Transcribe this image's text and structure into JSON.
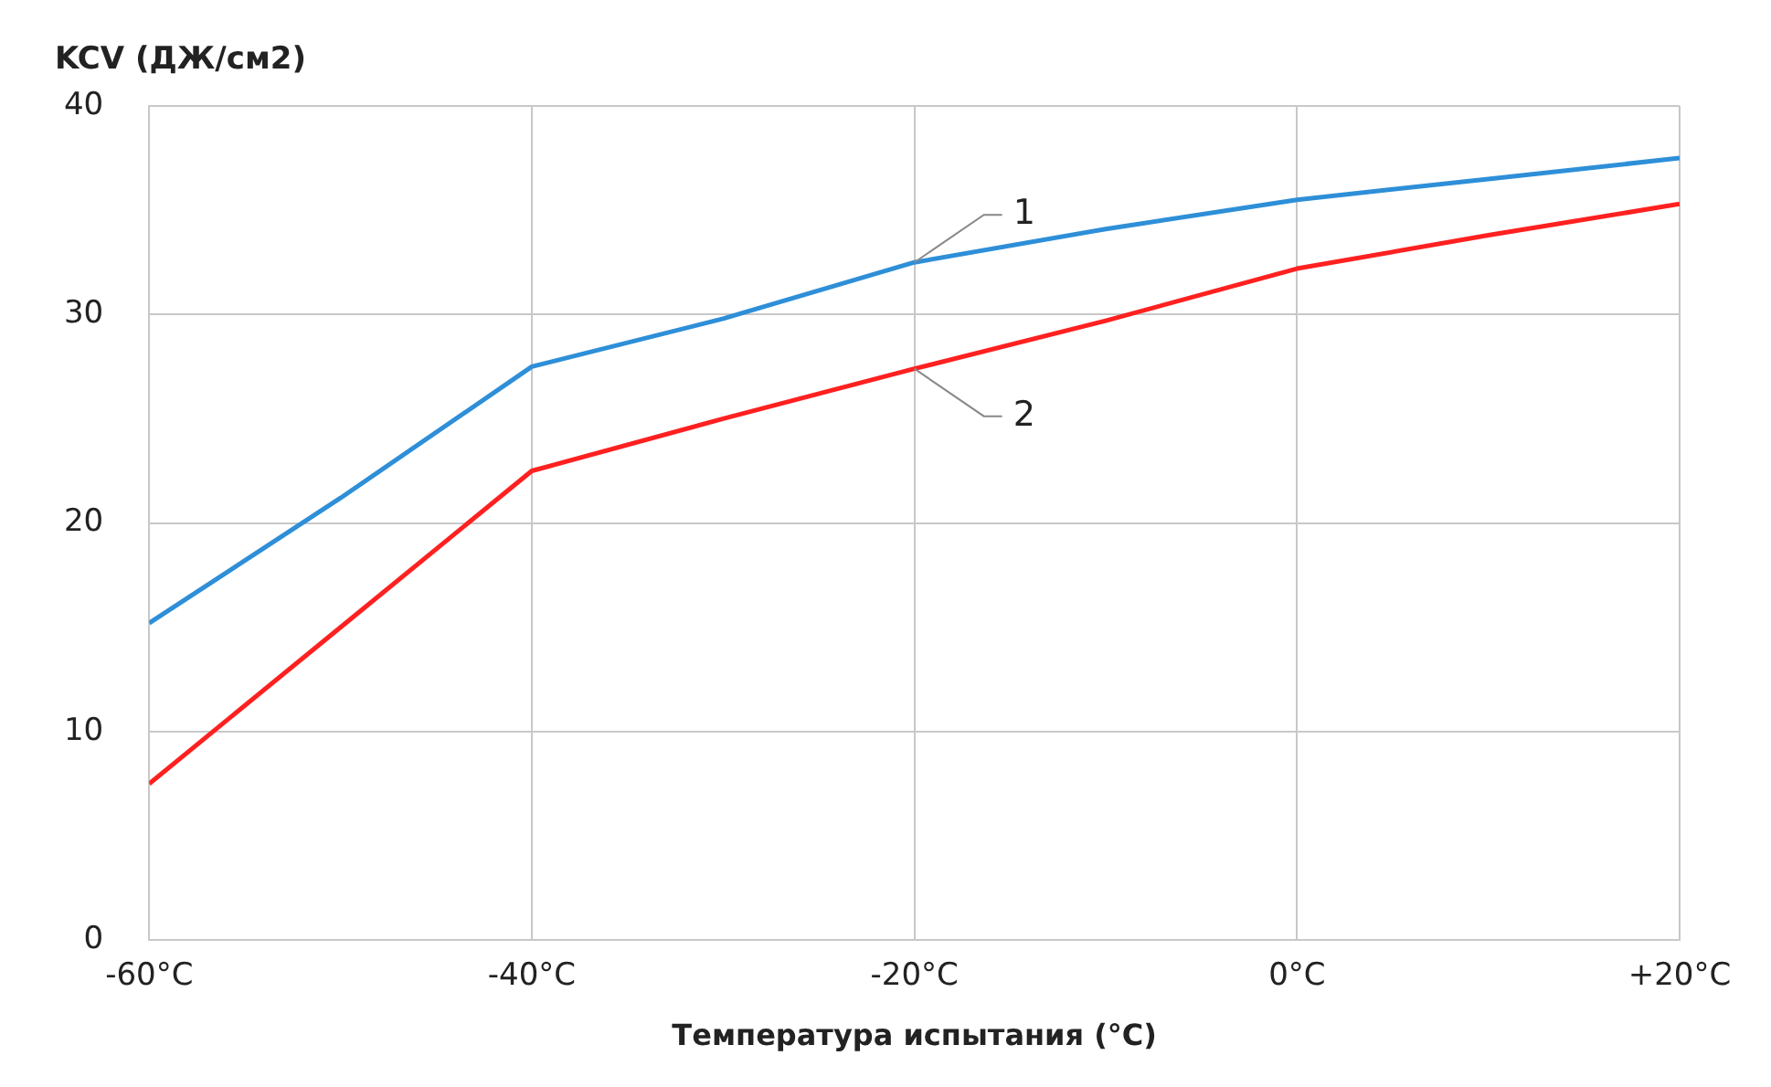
{
  "chart_data": {
    "type": "line",
    "ylabel": "KCV (ДЖ/см2)",
    "xlabel": "Температура испытания (°C)",
    "x": [
      -60,
      -50,
      -40,
      -30,
      -20,
      -10,
      0,
      10,
      20
    ],
    "series": [
      {
        "name": "1",
        "color": "#2e8fd8",
        "values": [
          15.2,
          21.2,
          27.5,
          29.8,
          32.5,
          34.1,
          35.5,
          36.5,
          37.5
        ]
      },
      {
        "name": "2",
        "color": "#ff2020",
        "values": [
          7.5,
          15,
          22.5,
          25,
          27.4,
          29.7,
          32.2,
          33.8,
          35.3
        ]
      }
    ],
    "xlim": [
      -60,
      20
    ],
    "xticks": [
      {
        "value": -60,
        "label": "-60°C"
      },
      {
        "value": -40,
        "label": "-40°C"
      },
      {
        "value": -20,
        "label": "-20°C"
      },
      {
        "value": 0,
        "label": "0°C"
      },
      {
        "value": 20,
        "label": "+20°C"
      }
    ],
    "ylim": [
      0,
      40
    ],
    "yticks": [
      0,
      10,
      20,
      30,
      40
    ],
    "grid": true
  }
}
